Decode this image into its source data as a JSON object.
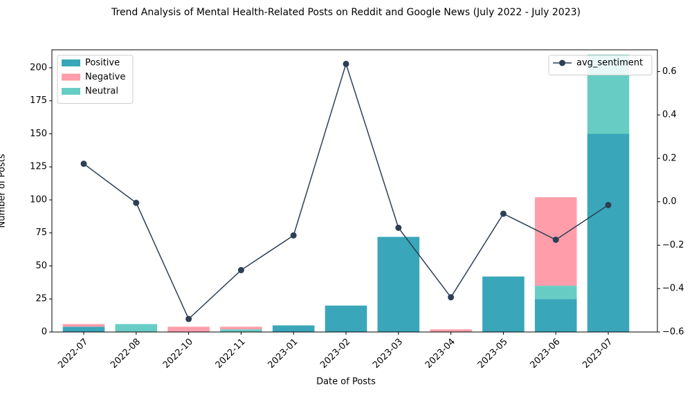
{
  "chart_data": {
    "type": "bar_line",
    "title": "Trend Analysis of Mental Health-Related Posts on Reddit and Google News (July 2022 - July 2023)",
    "xlabel": "Date of Posts",
    "ylabel": "Number of Posts",
    "categories": [
      "2022-07",
      "2022-08",
      "2022-10",
      "2022-11",
      "2023-01",
      "2023-02",
      "2023-03",
      "2023-04",
      "2023-05",
      "2023-06",
      "2023-07"
    ],
    "series": [
      {
        "name": "Positive",
        "color": "#3aa6b9",
        "type": "bar",
        "values": [
          4,
          0,
          0,
          0,
          5,
          20,
          72,
          0,
          42,
          25,
          150
        ]
      },
      {
        "name": "Negative",
        "color": "#ff9eaa",
        "type": "bar",
        "stack_order": 2,
        "values": [
          2,
          0,
          4,
          2,
          0,
          0,
          0,
          2,
          0,
          67,
          0
        ]
      },
      {
        "name": "Neutral",
        "color": "#67cdc4",
        "type": "bar",
        "stack_order": 1,
        "values": [
          0,
          6,
          0,
          2,
          0,
          0,
          0,
          0,
          0,
          10,
          60
        ]
      },
      {
        "name": "avg_sentiment",
        "color": "#2b3f55",
        "type": "line",
        "axis": "y2",
        "values": [
          0.175,
          -0.005,
          -0.54,
          -0.315,
          -0.155,
          0.635,
          -0.12,
          -0.44,
          -0.055,
          -0.175,
          -0.015
        ]
      }
    ],
    "ylim": [
      0,
      213.6
    ],
    "yticks": [
      0,
      25,
      50,
      75,
      100,
      125,
      150,
      175,
      200
    ],
    "y2lim": [
      -0.6,
      0.7
    ],
    "y2ticks": [
      {
        "value": -0.6,
        "label": "−0.6"
      },
      {
        "value": -0.4,
        "label": "−0.4"
      },
      {
        "value": -0.2,
        "label": "−0.2"
      },
      {
        "value": 0,
        "label": "0.0"
      },
      0.2,
      0.4,
      0.6
    ],
    "legend": "upper left",
    "legend2": "upper right"
  }
}
